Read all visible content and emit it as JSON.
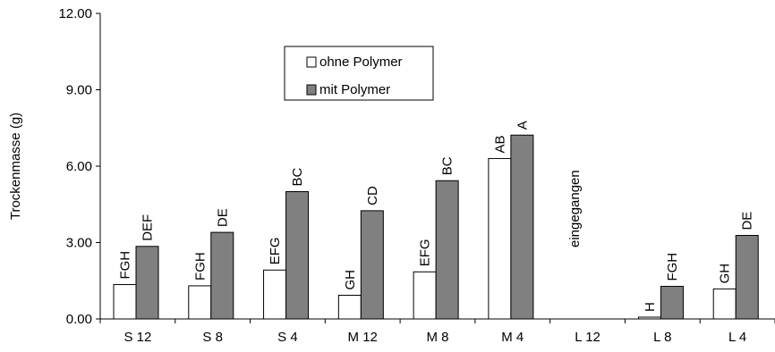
{
  "chart_data": {
    "type": "bar",
    "categories": [
      "S 12",
      "S 8",
      "S 4",
      "M 12",
      "M 8",
      "M 4",
      "L 12",
      "L 8",
      "L 4"
    ],
    "series": [
      {
        "name": "ohne Polymer",
        "color": "#ffffff",
        "values": [
          1.35,
          1.3,
          1.92,
          0.93,
          1.85,
          6.3,
          null,
          0.07,
          1.18
        ],
        "labels": [
          "FGH",
          "FGH",
          "EFG",
          "GH",
          "EFG",
          "AB",
          "",
          "H",
          "GH"
        ]
      },
      {
        "name": "mit Polymer",
        "color": "#808080",
        "values": [
          2.85,
          3.4,
          5.0,
          4.25,
          5.43,
          7.22,
          null,
          1.28,
          3.28
        ],
        "labels": [
          "DEF",
          "DE",
          "BC",
          "CD",
          "BC",
          "A",
          "",
          "FGH",
          "DE"
        ]
      }
    ],
    "yticks": [
      "0.00",
      "3.00",
      "6.00",
      "9.00",
      "12.00"
    ],
    "ylim": [
      0,
      12
    ],
    "ylabel": "Trockenmasse (g)",
    "xlabel": "",
    "annotations": [
      {
        "category": "L 12",
        "text": "eingegangen"
      }
    ],
    "legend": {
      "position": "top-left",
      "entries": [
        "ohne Polymer",
        "mit Polymer"
      ]
    },
    "grid": false
  }
}
